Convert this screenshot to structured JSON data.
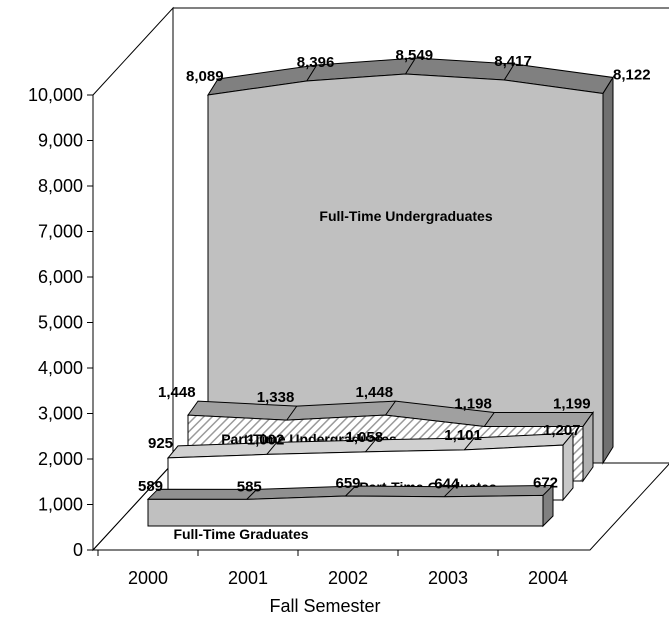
{
  "chart_data": {
    "type": "area",
    "title": "",
    "xlabel": "Fall Semester",
    "ylabel": "",
    "categories": [
      "2000",
      "2001",
      "2002",
      "2003",
      "2004"
    ],
    "ylim": [
      0,
      10000
    ],
    "yticks": [
      "0",
      "1,000",
      "2,000",
      "3,000",
      "4,000",
      "5,000",
      "6,000",
      "7,000",
      "8,000",
      "9,000",
      "10,000"
    ],
    "grid": false,
    "legend": "none",
    "series": [
      {
        "name": "Full-Time Undergraduates",
        "values": [
          8089,
          8396,
          8549,
          8417,
          8122
        ],
        "labels": [
          "8,089",
          "8,396",
          "8,549",
          "8,417",
          "8,122"
        ],
        "fill": "#c0c0c0",
        "top": "#808080",
        "side": "#707070",
        "pattern": "solid"
      },
      {
        "name": "Part-Time Undergraduates",
        "values": [
          1448,
          1338,
          1448,
          1198,
          1199
        ],
        "labels": [
          "1,448",
          "1,338",
          "1,448",
          "1,198",
          "1,199"
        ],
        "fill": "#d8d8d8",
        "top": "#a0a0a0",
        "side": "#b0b0b0",
        "pattern": "hatch"
      },
      {
        "name": "Part-Time Graduates",
        "values": [
          925,
          1002,
          1058,
          1101,
          1207
        ],
        "labels": [
          "925",
          "1,002",
          "1,058",
          "1,101",
          "1,207"
        ],
        "fill": "#ffffff",
        "top": "#d0d0d0",
        "side": "#c8c8c8",
        "pattern": "solid"
      },
      {
        "name": "Full-Time Graduates",
        "values": [
          589,
          585,
          659,
          644,
          672
        ],
        "labels": [
          "589",
          "585",
          "659",
          "644",
          "672"
        ],
        "fill": "#c0c0c0",
        "top": "#909090",
        "side": "#808080",
        "pattern": "solid"
      }
    ]
  }
}
